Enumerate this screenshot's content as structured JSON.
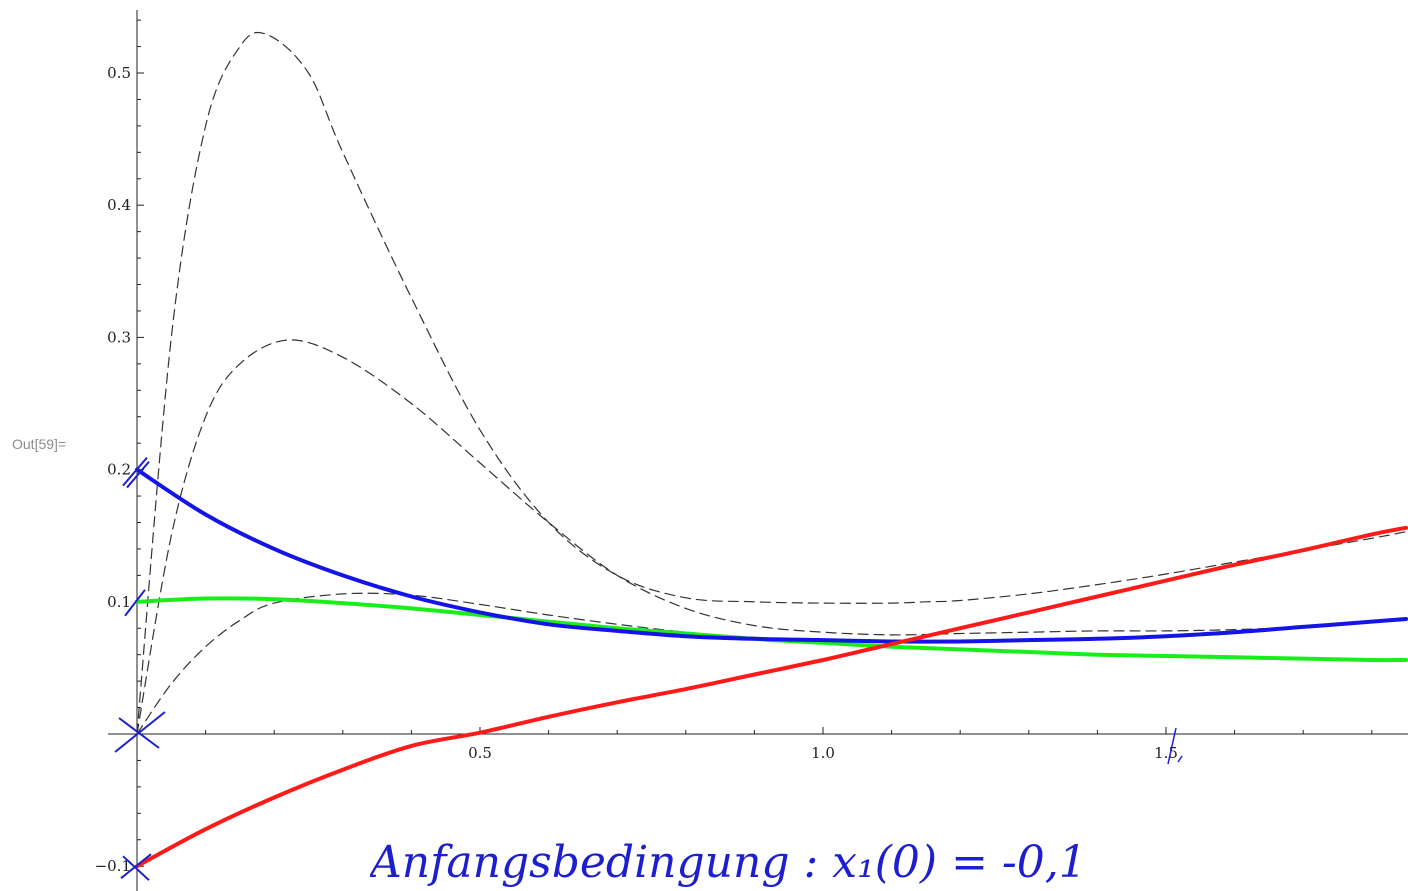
{
  "cell_label": "Out[59]=",
  "handwritten_note": {
    "text": "Anfangsbedingung :   x₁(0) = -0,1",
    "color": "#1d1fcf"
  },
  "chart_data": {
    "type": "line",
    "title": "",
    "xlabel": "",
    "ylabel": "",
    "xlim": [
      0,
      1.85
    ],
    "ylim": [
      -0.11,
      0.55
    ],
    "xticks": [
      0.5,
      1.0,
      1.5
    ],
    "xtick_labels": [
      "0.5",
      "1.0",
      "1.5"
    ],
    "yticks": [
      -0.1,
      0.1,
      0.2,
      0.3,
      0.4,
      0.5
    ],
    "ytick_labels": [
      "−0.1",
      "0.1",
      "0.2",
      "0.3",
      "0.4",
      "0.5"
    ],
    "grid": false,
    "series": [
      {
        "color": "#ff1a1a",
        "style": "solid",
        "x": [
          0,
          0.1,
          0.2,
          0.3,
          0.4,
          0.5,
          0.6,
          0.7,
          0.8,
          0.9,
          1.0,
          1.1,
          1.2,
          1.3,
          1.4,
          1.5,
          1.6,
          1.7,
          1.8,
          1.85
        ],
        "y": [
          -0.1,
          -0.072,
          -0.048,
          -0.027,
          -0.009,
          0.001,
          0.013,
          0.024,
          0.034,
          0.045,
          0.056,
          0.068,
          0.08,
          0.092,
          0.104,
          0.116,
          0.128,
          0.139,
          0.151,
          0.156
        ]
      },
      {
        "color": "#1414e6",
        "style": "solid",
        "x": [
          0,
          0.1,
          0.2,
          0.3,
          0.4,
          0.5,
          0.6,
          0.7,
          0.8,
          0.9,
          1.0,
          1.1,
          1.2,
          1.3,
          1.4,
          1.5,
          1.6,
          1.7,
          1.8,
          1.85
        ],
        "y": [
          0.2,
          0.166,
          0.14,
          0.12,
          0.104,
          0.092,
          0.083,
          0.078,
          0.074,
          0.072,
          0.071,
          0.07,
          0.07,
          0.071,
          0.072,
          0.074,
          0.077,
          0.081,
          0.085,
          0.087
        ]
      },
      {
        "color": "#1aee1a",
        "style": "solid",
        "x": [
          0,
          0.1,
          0.2,
          0.3,
          0.4,
          0.5,
          0.6,
          0.7,
          0.8,
          0.9,
          1.0,
          1.1,
          1.2,
          1.3,
          1.4,
          1.5,
          1.6,
          1.7,
          1.8,
          1.85
        ],
        "y": [
          0.1,
          0.1025,
          0.102,
          0.099,
          0.095,
          0.09,
          0.085,
          0.08,
          0.076,
          0.072,
          0.069,
          0.066,
          0.064,
          0.062,
          0.06,
          0.059,
          0.058,
          0.057,
          0.056,
          0.056
        ]
      },
      {
        "color": "#333333",
        "style": "dashed",
        "x": [
          0,
          0.05,
          0.1,
          0.15,
          0.19,
          0.25,
          0.3,
          0.4,
          0.5,
          0.6,
          0.7,
          0.8,
          0.9,
          1.0,
          1.1,
          1.15,
          1.2,
          1.3,
          1.4,
          1.5,
          1.6,
          1.7,
          1.8,
          1.85
        ],
        "y": [
          0,
          0.3,
          0.46,
          0.52,
          0.529,
          0.5,
          0.44,
          0.33,
          0.23,
          0.16,
          0.12,
          0.103,
          0.1,
          0.099,
          0.099,
          0.1,
          0.101,
          0.106,
          0.113,
          0.121,
          0.13,
          0.139,
          0.148,
          0.153
        ]
      },
      {
        "color": "#333333",
        "style": "dashed",
        "x": [
          0,
          0.05,
          0.1,
          0.15,
          0.22,
          0.3,
          0.4,
          0.5,
          0.6,
          0.7,
          0.8,
          0.9,
          1.0,
          1.1,
          1.2,
          1.3,
          1.4,
          1.5,
          1.6,
          1.7,
          1.8,
          1.85
        ],
        "y": [
          0,
          0.15,
          0.24,
          0.28,
          0.298,
          0.285,
          0.25,
          0.205,
          0.16,
          0.12,
          0.095,
          0.082,
          0.077,
          0.075,
          0.076,
          0.077,
          0.078,
          0.078,
          0.079,
          0.081,
          0.085,
          0.087
        ]
      },
      {
        "color": "#333333",
        "style": "dashed",
        "x": [
          0,
          0.05,
          0.1,
          0.15,
          0.2,
          0.3,
          0.4,
          0.5,
          0.6,
          0.7,
          0.8,
          0.9,
          1.0,
          1.1,
          1.2,
          1.3,
          1.4,
          1.5,
          1.6,
          1.7,
          1.8,
          1.85
        ],
        "y": [
          0,
          0.038,
          0.066,
          0.086,
          0.099,
          0.106,
          0.105,
          0.098,
          0.09,
          0.083,
          0.077,
          0.073,
          0.069,
          0.066,
          0.064,
          0.062,
          0.06,
          0.059,
          0.058,
          0.057,
          0.056,
          0.056
        ]
      }
    ]
  }
}
